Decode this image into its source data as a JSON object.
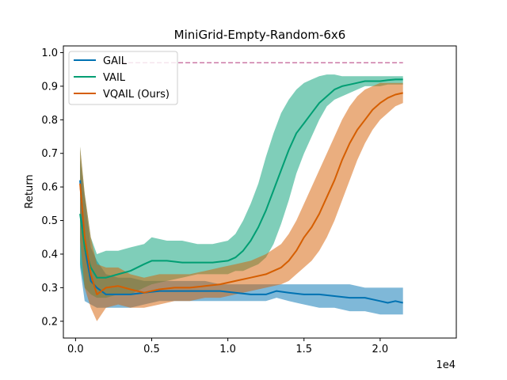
{
  "chart_data": {
    "type": "line",
    "title": "MiniGrid-Empty-Random-6x6",
    "xlabel": "",
    "ylabel": "Return",
    "x_offset_label": "1e4",
    "xlim": [
      -0.08,
      2.5
    ],
    "ylim": [
      0.15,
      1.02
    ],
    "x_ticks": [
      0.0,
      0.5,
      1.0,
      1.5,
      2.0
    ],
    "x_tick_labels": [
      "0.0",
      "0.5",
      "1.0",
      "1.5",
      "2.0"
    ],
    "y_ticks": [
      0.2,
      0.3,
      0.4,
      0.5,
      0.6,
      0.7,
      0.8,
      0.9,
      1.0
    ],
    "y_tick_labels": [
      "0.2",
      "0.3",
      "0.4",
      "0.5",
      "0.6",
      "0.7",
      "0.8",
      "0.9",
      "1.0"
    ],
    "grid": false,
    "legend_position": "top-left",
    "reference_line": {
      "y": 0.97,
      "x_range": [
        0.3,
        2.15
      ],
      "color": "#cc79a7",
      "style": "dashed"
    },
    "series": [
      {
        "name": "GAIL",
        "color": "#0072b2",
        "points": [
          [
            0.03,
            0.62
          ],
          [
            0.06,
            0.42
          ],
          [
            0.1,
            0.32
          ],
          [
            0.14,
            0.3
          ],
          [
            0.2,
            0.28
          ],
          [
            0.28,
            0.28
          ],
          [
            0.36,
            0.28
          ],
          [
            0.45,
            0.285
          ],
          [
            0.55,
            0.29
          ],
          [
            0.65,
            0.29
          ],
          [
            0.75,
            0.29
          ],
          [
            0.85,
            0.29
          ],
          [
            0.95,
            0.29
          ],
          [
            1.05,
            0.285
          ],
          [
            1.15,
            0.28
          ],
          [
            1.25,
            0.28
          ],
          [
            1.32,
            0.29
          ],
          [
            1.4,
            0.285
          ],
          [
            1.5,
            0.28
          ],
          [
            1.6,
            0.28
          ],
          [
            1.7,
            0.275
          ],
          [
            1.8,
            0.27
          ],
          [
            1.9,
            0.27
          ],
          [
            2.0,
            0.26
          ],
          [
            2.05,
            0.255
          ],
          [
            2.1,
            0.26
          ],
          [
            2.15,
            0.255
          ]
        ],
        "band": [
          [
            0.03,
            0.36,
            0.68
          ],
          [
            0.06,
            0.26,
            0.57
          ],
          [
            0.1,
            0.25,
            0.42
          ],
          [
            0.14,
            0.24,
            0.38
          ],
          [
            0.2,
            0.24,
            0.34
          ],
          [
            0.28,
            0.24,
            0.33
          ],
          [
            0.36,
            0.24,
            0.33
          ],
          [
            0.45,
            0.25,
            0.32
          ],
          [
            0.55,
            0.26,
            0.32
          ],
          [
            0.65,
            0.26,
            0.32
          ],
          [
            0.75,
            0.26,
            0.32
          ],
          [
            0.85,
            0.26,
            0.32
          ],
          [
            0.95,
            0.26,
            0.31
          ],
          [
            1.05,
            0.26,
            0.31
          ],
          [
            1.15,
            0.26,
            0.31
          ],
          [
            1.25,
            0.26,
            0.31
          ],
          [
            1.32,
            0.27,
            0.31
          ],
          [
            1.4,
            0.26,
            0.31
          ],
          [
            1.5,
            0.25,
            0.31
          ],
          [
            1.6,
            0.24,
            0.31
          ],
          [
            1.7,
            0.24,
            0.31
          ],
          [
            1.8,
            0.23,
            0.31
          ],
          [
            1.9,
            0.23,
            0.3
          ],
          [
            2.0,
            0.22,
            0.3
          ],
          [
            2.05,
            0.22,
            0.3
          ],
          [
            2.1,
            0.22,
            0.3
          ],
          [
            2.15,
            0.22,
            0.3
          ]
        ]
      },
      {
        "name": "VAIL",
        "color": "#009e73",
        "points": [
          [
            0.03,
            0.52
          ],
          [
            0.06,
            0.42
          ],
          [
            0.1,
            0.36
          ],
          [
            0.14,
            0.33
          ],
          [
            0.2,
            0.33
          ],
          [
            0.28,
            0.34
          ],
          [
            0.36,
            0.35
          ],
          [
            0.45,
            0.37
          ],
          [
            0.5,
            0.38
          ],
          [
            0.6,
            0.38
          ],
          [
            0.7,
            0.375
          ],
          [
            0.8,
            0.375
          ],
          [
            0.9,
            0.375
          ],
          [
            1.0,
            0.38
          ],
          [
            1.05,
            0.39
          ],
          [
            1.1,
            0.41
          ],
          [
            1.15,
            0.44
          ],
          [
            1.2,
            0.48
          ],
          [
            1.25,
            0.53
          ],
          [
            1.3,
            0.59
          ],
          [
            1.35,
            0.65
          ],
          [
            1.4,
            0.71
          ],
          [
            1.45,
            0.76
          ],
          [
            1.5,
            0.79
          ],
          [
            1.55,
            0.82
          ],
          [
            1.6,
            0.85
          ],
          [
            1.65,
            0.87
          ],
          [
            1.7,
            0.89
          ],
          [
            1.75,
            0.9
          ],
          [
            1.8,
            0.905
          ],
          [
            1.85,
            0.91
          ],
          [
            1.9,
            0.915
          ],
          [
            1.95,
            0.915
          ],
          [
            2.0,
            0.915
          ],
          [
            2.05,
            0.918
          ],
          [
            2.1,
            0.92
          ],
          [
            2.15,
            0.92
          ]
        ],
        "band": [
          [
            0.03,
            0.37,
            0.72
          ],
          [
            0.06,
            0.3,
            0.58
          ],
          [
            0.1,
            0.28,
            0.45
          ],
          [
            0.14,
            0.27,
            0.4
          ],
          [
            0.2,
            0.27,
            0.41
          ],
          [
            0.28,
            0.28,
            0.41
          ],
          [
            0.36,
            0.28,
            0.42
          ],
          [
            0.45,
            0.3,
            0.43
          ],
          [
            0.5,
            0.31,
            0.45
          ],
          [
            0.6,
            0.32,
            0.44
          ],
          [
            0.7,
            0.33,
            0.44
          ],
          [
            0.8,
            0.34,
            0.43
          ],
          [
            0.9,
            0.34,
            0.43
          ],
          [
            1.0,
            0.34,
            0.44
          ],
          [
            1.05,
            0.35,
            0.46
          ],
          [
            1.1,
            0.35,
            0.5
          ],
          [
            1.15,
            0.36,
            0.55
          ],
          [
            1.2,
            0.37,
            0.61
          ],
          [
            1.25,
            0.39,
            0.69
          ],
          [
            1.3,
            0.43,
            0.76
          ],
          [
            1.35,
            0.49,
            0.82
          ],
          [
            1.4,
            0.56,
            0.86
          ],
          [
            1.45,
            0.64,
            0.89
          ],
          [
            1.5,
            0.7,
            0.91
          ],
          [
            1.55,
            0.75,
            0.92
          ],
          [
            1.6,
            0.8,
            0.93
          ],
          [
            1.65,
            0.84,
            0.935
          ],
          [
            1.7,
            0.86,
            0.935
          ],
          [
            1.75,
            0.87,
            0.93
          ],
          [
            1.8,
            0.88,
            0.93
          ],
          [
            1.85,
            0.89,
            0.93
          ],
          [
            1.9,
            0.9,
            0.93
          ],
          [
            1.95,
            0.9,
            0.93
          ],
          [
            2.0,
            0.9,
            0.93
          ],
          [
            2.05,
            0.905,
            0.93
          ],
          [
            2.1,
            0.905,
            0.93
          ],
          [
            2.15,
            0.905,
            0.93
          ]
        ]
      },
      {
        "name": "VQAIL (Ours)",
        "color": "#d55e00",
        "points": [
          [
            0.03,
            0.61
          ],
          [
            0.06,
            0.45
          ],
          [
            0.1,
            0.34
          ],
          [
            0.14,
            0.28
          ],
          [
            0.2,
            0.3
          ],
          [
            0.28,
            0.305
          ],
          [
            0.36,
            0.295
          ],
          [
            0.45,
            0.285
          ],
          [
            0.55,
            0.295
          ],
          [
            0.65,
            0.3
          ],
          [
            0.75,
            0.3
          ],
          [
            0.85,
            0.305
          ],
          [
            0.95,
            0.31
          ],
          [
            1.05,
            0.32
          ],
          [
            1.15,
            0.33
          ],
          [
            1.25,
            0.34
          ],
          [
            1.35,
            0.36
          ],
          [
            1.4,
            0.38
          ],
          [
            1.45,
            0.41
          ],
          [
            1.5,
            0.45
          ],
          [
            1.55,
            0.48
          ],
          [
            1.6,
            0.52
          ],
          [
            1.65,
            0.57
          ],
          [
            1.7,
            0.62
          ],
          [
            1.75,
            0.68
          ],
          [
            1.8,
            0.73
          ],
          [
            1.85,
            0.77
          ],
          [
            1.9,
            0.8
          ],
          [
            1.95,
            0.83
          ],
          [
            2.0,
            0.85
          ],
          [
            2.05,
            0.865
          ],
          [
            2.1,
            0.875
          ],
          [
            2.15,
            0.88
          ]
        ],
        "band": [
          [
            0.03,
            0.44,
            0.72
          ],
          [
            0.06,
            0.3,
            0.58
          ],
          [
            0.1,
            0.24,
            0.45
          ],
          [
            0.14,
            0.2,
            0.37
          ],
          [
            0.2,
            0.24,
            0.36
          ],
          [
            0.28,
            0.25,
            0.36
          ],
          [
            0.36,
            0.24,
            0.34
          ],
          [
            0.45,
            0.24,
            0.33
          ],
          [
            0.55,
            0.25,
            0.34
          ],
          [
            0.65,
            0.26,
            0.34
          ],
          [
            0.75,
            0.26,
            0.34
          ],
          [
            0.85,
            0.27,
            0.35
          ],
          [
            0.95,
            0.27,
            0.36
          ],
          [
            1.05,
            0.28,
            0.37
          ],
          [
            1.15,
            0.29,
            0.38
          ],
          [
            1.25,
            0.3,
            0.4
          ],
          [
            1.35,
            0.31,
            0.43
          ],
          [
            1.4,
            0.32,
            0.46
          ],
          [
            1.45,
            0.34,
            0.5
          ],
          [
            1.5,
            0.36,
            0.55
          ],
          [
            1.55,
            0.38,
            0.6
          ],
          [
            1.6,
            0.41,
            0.65
          ],
          [
            1.65,
            0.45,
            0.7
          ],
          [
            1.7,
            0.5,
            0.75
          ],
          [
            1.75,
            0.56,
            0.8
          ],
          [
            1.8,
            0.62,
            0.84
          ],
          [
            1.85,
            0.68,
            0.87
          ],
          [
            1.9,
            0.73,
            0.89
          ],
          [
            1.95,
            0.77,
            0.9
          ],
          [
            2.0,
            0.8,
            0.91
          ],
          [
            2.05,
            0.82,
            0.91
          ],
          [
            2.1,
            0.84,
            0.91
          ],
          [
            2.15,
            0.85,
            0.91
          ]
        ]
      }
    ]
  }
}
